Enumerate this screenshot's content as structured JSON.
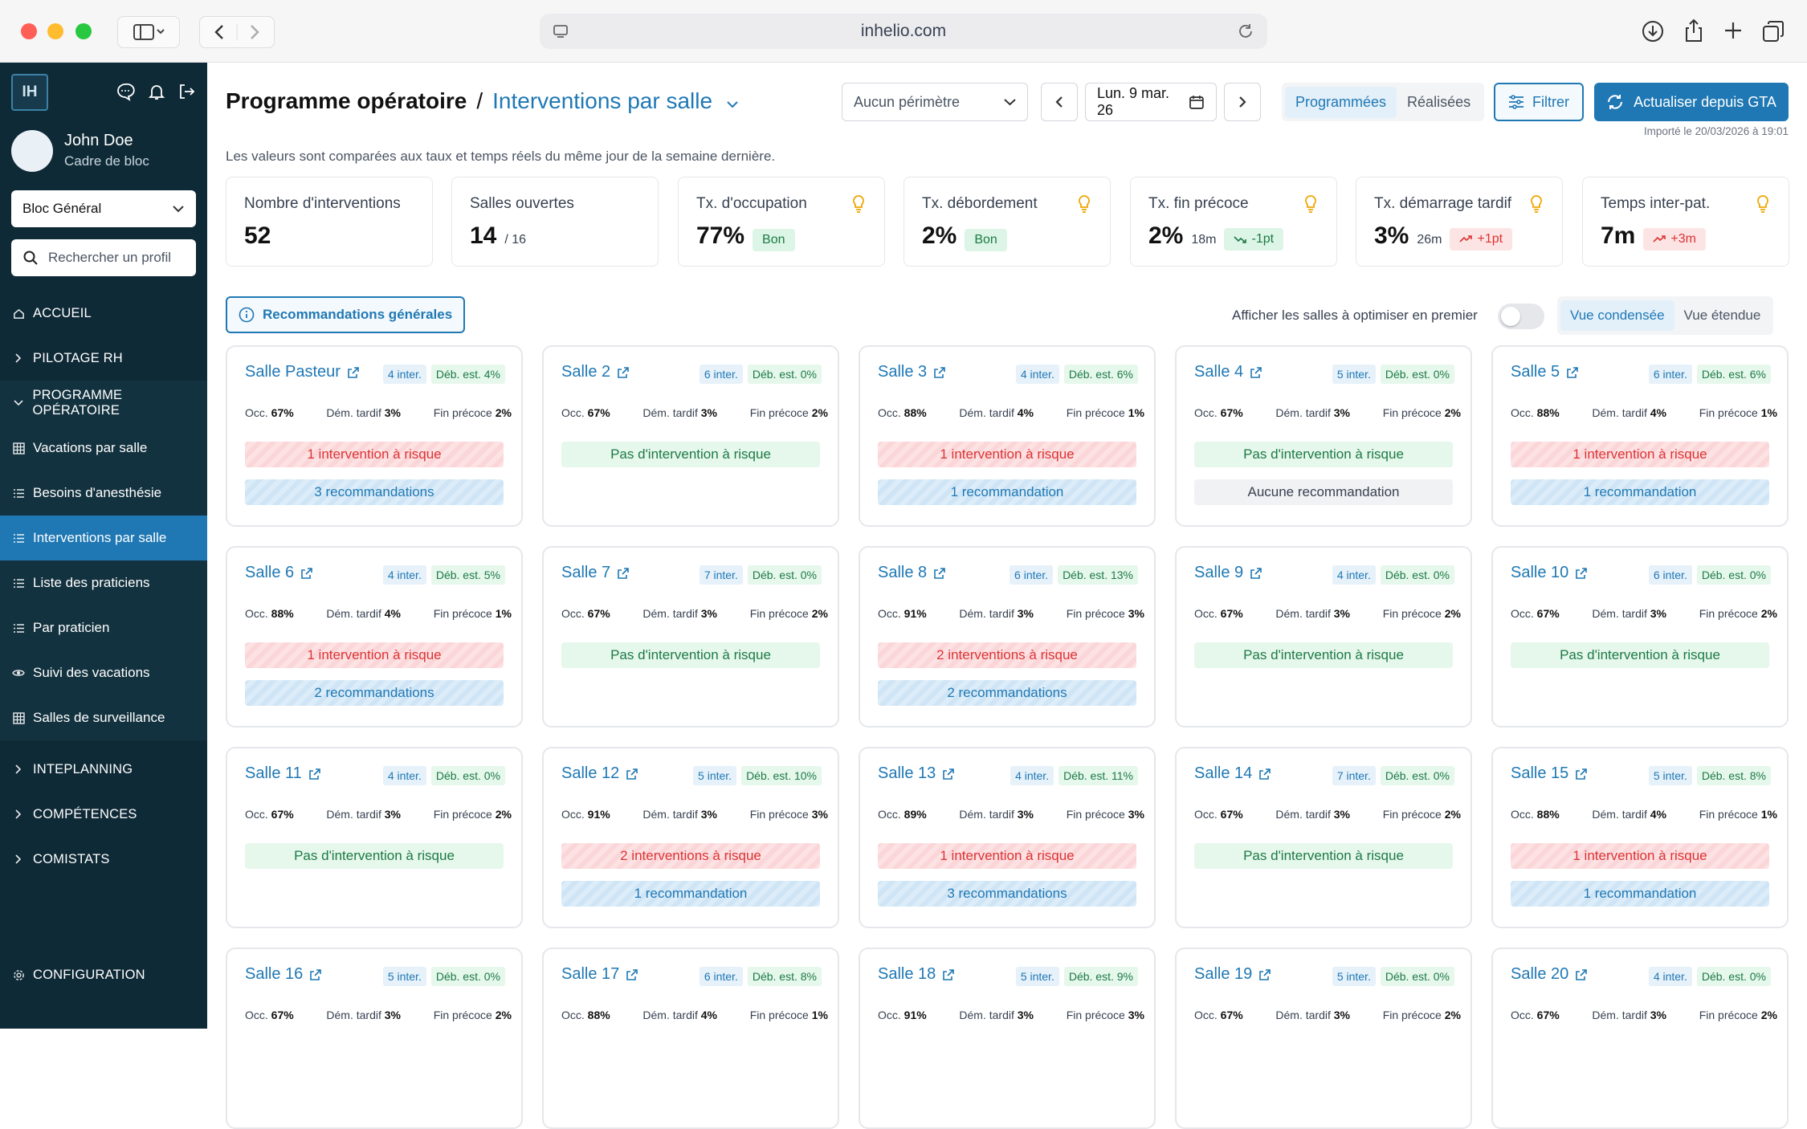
{
  "browser": {
    "url": "inhelio.com"
  },
  "sidebar": {
    "logo": "IH",
    "user": {
      "name": "John Doe",
      "role": "Cadre de bloc"
    },
    "bloc_select": "Bloc Général",
    "search_placeholder": "Rechercher un profil",
    "items": [
      {
        "label": "ACCUEIL",
        "icon": "home-icon"
      },
      {
        "label": "PILOTAGE RH",
        "icon": "chevron-right-icon"
      },
      {
        "label": "PROGRAMME OPÉRATOIRE",
        "icon": "chevron-down-icon"
      },
      {
        "label": "Vacations par salle",
        "icon": "grid-icon"
      },
      {
        "label": "Besoins d'anesthésie",
        "icon": "list-icon"
      },
      {
        "label": "Interventions par salle",
        "icon": "list-icon"
      },
      {
        "label": "Liste des praticiens",
        "icon": "list-icon"
      },
      {
        "label": "Par praticien",
        "icon": "list-icon"
      },
      {
        "label": "Suivi des vacations",
        "icon": "eye-icon"
      },
      {
        "label": "Salles de surveillance",
        "icon": "grid-icon"
      },
      {
        "label": "INTEPLANNING",
        "icon": "chevron-right-icon"
      },
      {
        "label": "COMPÉTENCES",
        "icon": "chevron-right-icon"
      },
      {
        "label": "COMISTATS",
        "icon": "chevron-right-icon"
      }
    ],
    "config": "CONFIGURATION"
  },
  "header": {
    "title": "Programme opératoire",
    "separator": "/",
    "subtitle": "Interventions par salle",
    "perimeter": "Aucun périmètre",
    "date": "Lun. 9 mar. 26",
    "tabs": [
      "Programmées",
      "Réalisées"
    ],
    "filter": "Filtrer",
    "refresh": "Actualiser depuis GTA",
    "imported": "Importé le 20/03/2026 à 19:01"
  },
  "note": "Les valeurs sont comparées aux taux et temps réels du même jour de la semaine dernière.",
  "kpis": [
    {
      "label": "Nombre d'interventions",
      "value": "52",
      "aux": "",
      "pill": ""
    },
    {
      "label": "Salles ouvertes",
      "value": "14",
      "aux": "/ 16",
      "pill": ""
    },
    {
      "label": "Tx. d'occupation",
      "value": "77%",
      "aux": "",
      "pill": "Bon"
    },
    {
      "label": "Tx. débordement",
      "value": "2%",
      "aux": "",
      "pill": "Bon"
    },
    {
      "label": "Tx. fin précoce",
      "value": "2%",
      "aux": "18m",
      "pill": "-1pt"
    },
    {
      "label": "Tx. démarrage tardif",
      "value": "3%",
      "aux": "26m",
      "pill": "+1pt"
    },
    {
      "label": "Temps inter-pat.",
      "value": "7m",
      "aux": "",
      "pill": "+3m"
    }
  ],
  "recommendations_button": "Recommandations générales",
  "toggle_label": "Afficher les salles à optimiser en premier",
  "views": [
    "Vue condensée",
    "Vue étendue"
  ],
  "stat_labels": {
    "occ": "Occ.",
    "dem": "Dém. tardif",
    "fin": "Fin précoce"
  },
  "rooms": [
    {
      "name": "Salle Pasteur",
      "inter": "4 inter.",
      "deb": "Déb. est. 4%",
      "occ": "67%",
      "dem": "3%",
      "fin": "2%",
      "risk": "1 intervention à risque",
      "recs": "3 recommandations"
    },
    {
      "name": "Salle 2",
      "inter": "6 inter.",
      "deb": "Déb. est. 0%",
      "occ": "67%",
      "dem": "3%",
      "fin": "2%",
      "risk": "Pas d'intervention à risque",
      "recs": ""
    },
    {
      "name": "Salle 3",
      "inter": "4 inter.",
      "deb": "Déb. est. 6%",
      "occ": "88%",
      "dem": "4%",
      "fin": "1%",
      "risk": "1 intervention à risque",
      "recs": "1 recommandation"
    },
    {
      "name": "Salle 4",
      "inter": "5 inter.",
      "deb": "Déb. est. 0%",
      "occ": "67%",
      "dem": "3%",
      "fin": "2%",
      "risk": "Pas d'intervention à risque",
      "recs": "Aucune recommandation"
    },
    {
      "name": "Salle 5",
      "inter": "6 inter.",
      "deb": "Déb. est. 6%",
      "occ": "88%",
      "dem": "4%",
      "fin": "1%",
      "risk": "1 intervention à risque",
      "recs": "1 recommandation"
    },
    {
      "name": "Salle 6",
      "inter": "4 inter.",
      "deb": "Déb. est. 5%",
      "occ": "88%",
      "dem": "4%",
      "fin": "1%",
      "risk": "1 intervention à risque",
      "recs": "2 recommandations"
    },
    {
      "name": "Salle 7",
      "inter": "7 inter.",
      "deb": "Déb. est. 0%",
      "occ": "67%",
      "dem": "3%",
      "fin": "2%",
      "risk": "Pas d'intervention à risque",
      "recs": ""
    },
    {
      "name": "Salle 8",
      "inter": "6 inter.",
      "deb": "Déb. est. 13%",
      "occ": "91%",
      "dem": "3%",
      "fin": "3%",
      "risk": "2 interventions à risque",
      "recs": "2 recommandations"
    },
    {
      "name": "Salle 9",
      "inter": "4 inter.",
      "deb": "Déb. est. 0%",
      "occ": "67%",
      "dem": "3%",
      "fin": "2%",
      "risk": "Pas d'intervention à risque",
      "recs": ""
    },
    {
      "name": "Salle 10",
      "inter": "6 inter.",
      "deb": "Déb. est. 0%",
      "occ": "67%",
      "dem": "3%",
      "fin": "2%",
      "risk": "Pas d'intervention à risque",
      "recs": ""
    },
    {
      "name": "Salle 11",
      "inter": "4 inter.",
      "deb": "Déb. est. 0%",
      "occ": "67%",
      "dem": "3%",
      "fin": "2%",
      "risk": "Pas d'intervention à risque",
      "recs": ""
    },
    {
      "name": "Salle 12",
      "inter": "5 inter.",
      "deb": "Déb. est. 10%",
      "occ": "91%",
      "dem": "3%",
      "fin": "3%",
      "risk": "2 interventions à risque",
      "recs": "1 recommandation"
    },
    {
      "name": "Salle 13",
      "inter": "4 inter.",
      "deb": "Déb. est. 11%",
      "occ": "89%",
      "dem": "3%",
      "fin": "3%",
      "risk": "1 intervention à risque",
      "recs": "3 recommandations"
    },
    {
      "name": "Salle 14",
      "inter": "7 inter.",
      "deb": "Déb. est. 0%",
      "occ": "67%",
      "dem": "3%",
      "fin": "2%",
      "risk": "Pas d'intervention à risque",
      "recs": ""
    },
    {
      "name": "Salle 15",
      "inter": "5 inter.",
      "deb": "Déb. est. 8%",
      "occ": "88%",
      "dem": "4%",
      "fin": "1%",
      "risk": "1 intervention à risque",
      "recs": "1 recommandation"
    },
    {
      "name": "Salle 16",
      "inter": "5 inter.",
      "deb": "Déb. est. 0%",
      "occ": "67%",
      "dem": "3%",
      "fin": "2%",
      "risk": "",
      "recs": ""
    },
    {
      "name": "Salle 17",
      "inter": "6 inter.",
      "deb": "Déb. est. 8%",
      "occ": "88%",
      "dem": "4%",
      "fin": "1%",
      "risk": "",
      "recs": ""
    },
    {
      "name": "Salle 18",
      "inter": "5 inter.",
      "deb": "Déb. est. 9%",
      "occ": "91%",
      "dem": "3%",
      "fin": "3%",
      "risk": "",
      "recs": ""
    },
    {
      "name": "Salle 19",
      "inter": "5 inter.",
      "deb": "Déb. est. 0%",
      "occ": "67%",
      "dem": "3%",
      "fin": "2%",
      "risk": "",
      "recs": ""
    },
    {
      "name": "Salle 20",
      "inter": "4 inter.",
      "deb": "Déb. est. 0%",
      "occ": "67%",
      "dem": "3%",
      "fin": "2%",
      "risk": "",
      "recs": ""
    }
  ],
  "colors": {
    "accent": "#1f78b4",
    "sidebar": "#0f2a37",
    "warning": "#f5a742",
    "danger": "#e0606a",
    "success": "#1c7a45"
  }
}
